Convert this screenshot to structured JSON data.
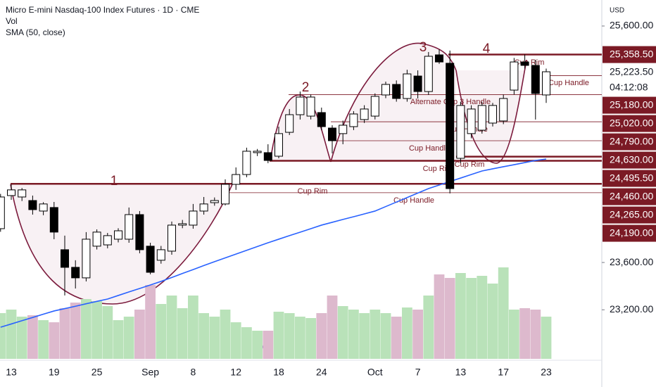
{
  "chart_data": {
    "type": "candlestick",
    "title": "Micro E-mini Nasdaq-100 Index Futures · 1D · CME",
    "indicators": [
      "Vol",
      "SMA (50, close)"
    ],
    "currency": "USD",
    "categories": [
      null,
      "13",
      null,
      null,
      null,
      "19",
      null,
      null,
      null,
      "25",
      null,
      null,
      null,
      null,
      "Sep",
      null,
      null,
      null,
      "8",
      null,
      null,
      null,
      "12",
      null,
      null,
      null,
      "18",
      null,
      null,
      null,
      "24",
      null,
      null,
      null,
      null,
      "Oct",
      null,
      null,
      null,
      "7",
      null,
      null,
      null,
      "13",
      null,
      null,
      null,
      "17",
      null,
      null,
      null,
      "23"
    ],
    "open": [
      23886,
      24166,
      24154,
      24124,
      24035,
      24065,
      23708,
      23559,
      23470,
      23738,
      23749,
      23797,
      23797,
      24005,
      23738,
      23619,
      23696,
      23916,
      23916,
      24035,
      24106,
      24095,
      24261,
      24344,
      24529,
      24529,
      24499,
      24701,
      24850,
      24838,
      24868,
      24737,
      24690,
      24749,
      24809,
      24838,
      25017,
      25106,
      24987,
      25177,
      25046,
      25356,
      25285,
      24481,
      24690,
      24719,
      24779,
      24797,
      25058,
      25296,
      25267,
      25017
    ],
    "high": [
      24180,
      24261,
      24230,
      24166,
      24110,
      24112,
      23827,
      23619,
      23857,
      23880,
      23850,
      23890,
      24065,
      24035,
      23767,
      23740,
      23946,
      23960,
      24095,
      24154,
      24150,
      24303,
      24404,
      24571,
      24560,
      24600,
      24749,
      24898,
      25046,
      25020,
      24910,
      24761,
      24800,
      24880,
      24930,
      25030,
      25130,
      25140,
      25230,
      25225,
      25380,
      25403,
      25392,
      24960,
      24930,
      24960,
      24950,
      25020,
      25330,
      25360,
      25314,
      25240
    ],
    "low": [
      23860,
      24130,
      24120,
      24005,
      24000,
      23797,
      23321,
      23380,
      23440,
      23710,
      23720,
      23770,
      23767,
      23678,
      23500,
      23590,
      23666,
      23890,
      23886,
      24005,
      24080,
      24083,
      24214,
      24321,
      24500,
      24440,
      24481,
      24678,
      24809,
      24810,
      24720,
      24523,
      24600,
      24720,
      24780,
      24810,
      24990,
      24960,
      24960,
      24987,
      25017,
      25280,
      24184,
      24440,
      24650,
      24690,
      24750,
      24770,
      25020,
      25240,
      24809,
      24950
    ],
    "close": [
      24154,
      24214,
      24214,
      24047,
      24095,
      23857,
      23559,
      23470,
      23797,
      23857,
      23827,
      23868,
      24005,
      23708,
      23517,
      23708,
      23916,
      23928,
      24035,
      24095,
      24124,
      24261,
      24344,
      24541,
      24541,
      24463,
      24690,
      24850,
      24999,
      24999,
      24749,
      24630,
      24761,
      24856,
      24898,
      25005,
      25106,
      24987,
      25195,
      25046,
      25344,
      25296,
      24225,
      24928,
      24898,
      24928,
      24928,
      24987,
      25296,
      25267,
      25029,
      25213
    ],
    "volume": [
      65,
      70,
      60,
      62,
      55,
      52,
      72,
      80,
      85,
      82,
      75,
      55,
      60,
      70,
      105,
      78,
      90,
      72,
      90,
      65,
      60,
      70,
      52,
      45,
      40,
      40,
      67,
      65,
      60,
      58,
      65,
      90,
      75,
      70,
      65,
      70,
      65,
      60,
      73,
      70,
      90,
      120,
      115,
      122,
      115,
      118,
      107,
      130,
      70,
      72,
      70,
      60
    ],
    "volume_lim": [
      0,
      140
    ],
    "sma": {
      "name": "SMA (50, close)",
      "color": "#2962ff",
      "values": [
        23053,
        23080,
        23108,
        23135,
        23163,
        23190,
        23210,
        23230,
        23251,
        23271,
        23291,
        23321,
        23351,
        23380,
        23410,
        23440,
        23473,
        23507,
        23540,
        23574,
        23607,
        23639,
        23671,
        23703,
        23735,
        23767,
        23797,
        23827,
        23856,
        23886,
        23916,
        23940,
        23964,
        23987,
        24011,
        24035,
        24073,
        24111,
        24149,
        24187,
        24225,
        24255,
        24285,
        24314,
        24344,
        24374,
        24392,
        24410,
        24427,
        24445,
        24463,
        24475
      ]
    },
    "colors": {
      "up": "#ffffff",
      "down": "#000000",
      "up_volume": "#b9e2b9",
      "down_volume": "#ddb9cd",
      "level": "#7b1a25"
    },
    "ylim": [
      22785,
      25820
    ],
    "yticks": [
      {
        "value": 25600,
        "label": "25,600.00"
      },
      {
        "value": 23600,
        "label": "23,600.00"
      },
      {
        "value": 23200,
        "label": "23,200.00"
      }
    ],
    "last_price": {
      "value": 25223.5,
      "label": "25,223.50"
    },
    "countdown": "04:12:08",
    "price_labels": [
      {
        "value": 25358.5,
        "label": "25,358.50"
      },
      {
        "value": 25180,
        "label": "25,180.00"
      },
      {
        "value": 25020,
        "label": "25,020.00"
      },
      {
        "value": 24790,
        "label": "24,790.00"
      },
      {
        "value": 24630,
        "label": "24,630.00"
      },
      {
        "value": 24495.5,
        "label": "24,495.50"
      },
      {
        "value": 24460,
        "label": "24,460.00"
      },
      {
        "value": 24265,
        "label": "24,265.00"
      },
      {
        "value": 24190,
        "label": "24,190.00"
      }
    ],
    "annotations": [
      "1",
      "2",
      "3",
      "4",
      "Cup Rim",
      "Cup Rim",
      "Cup Rim",
      "Cup Rim",
      "Cup Handle",
      "Cup Handle",
      "Cup Handle",
      "Cup Handle",
      "Alternate Cup 3 Handle"
    ]
  }
}
